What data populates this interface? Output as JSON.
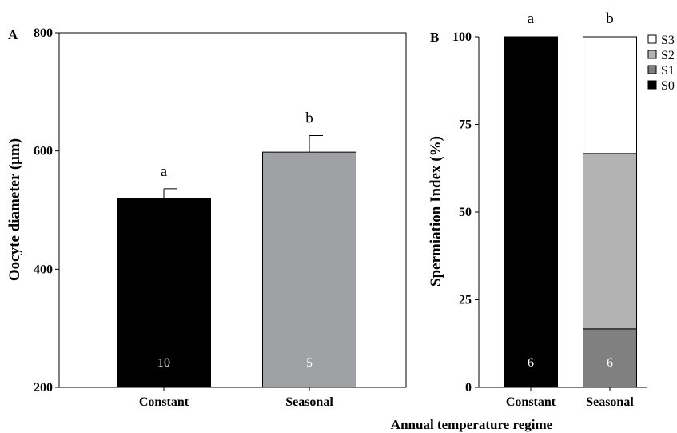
{
  "figure": {
    "xlabel": "Annual temperature regime"
  },
  "chart_data": [
    {
      "panel": "A",
      "type": "bar",
      "ylabel": "Oocyte diameter (μm)",
      "ylim": [
        200,
        800
      ],
      "yticks": [
        200,
        400,
        600,
        800
      ],
      "categories": [
        "Constant",
        "Seasonal"
      ],
      "values": [
        519,
        598
      ],
      "errors": [
        17,
        28
      ],
      "letters": [
        "a",
        "b"
      ],
      "n": [
        "10",
        "5"
      ],
      "colors": [
        "#000000",
        "#a0a1a5"
      ]
    },
    {
      "panel": "B",
      "type": "bar",
      "stacked": true,
      "ylabel": "Spermiation Index (%)",
      "ylim": [
        0,
        100
      ],
      "yticks": [
        0,
        25,
        50,
        75,
        100
      ],
      "categories": [
        "Constant",
        "Seasonal"
      ],
      "letters": [
        "a",
        "b"
      ],
      "n": [
        "6",
        "6"
      ],
      "legend_position": "top-right",
      "series": [
        {
          "name": "S0",
          "color": "#000000",
          "values": [
            100,
            0
          ]
        },
        {
          "name": "S1",
          "color": "#808080",
          "values": [
            0,
            16.7
          ]
        },
        {
          "name": "S2",
          "color": "#b3b3b3",
          "values": [
            0,
            50
          ]
        },
        {
          "name": "S3",
          "color": "#ffffff",
          "values": [
            0,
            33.3
          ]
        }
      ]
    }
  ]
}
